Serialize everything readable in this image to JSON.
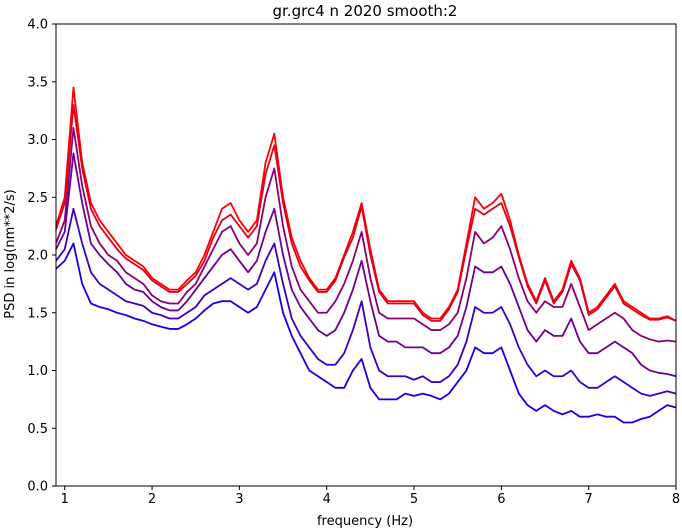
{
  "chart_data": {
    "type": "line",
    "title": "gr.grc4 n 2020 smooth:2",
    "xlabel": "frequency (Hz)",
    "ylabel": "PSD in log(nm**2/s)",
    "xlim": [
      0.9,
      8.0
    ],
    "ylim": [
      0.0,
      4.0
    ],
    "xticks": [
      1,
      2,
      3,
      4,
      5,
      6,
      7,
      8
    ],
    "yticks": [
      0.0,
      0.5,
      1.0,
      1.5,
      2.0,
      2.5,
      3.0,
      3.5,
      4.0
    ],
    "xtick_labels": [
      "1",
      "2",
      "3",
      "4",
      "5",
      "6",
      "7",
      "8"
    ],
    "ytick_labels": [
      "0.0",
      "0.5",
      "1.0",
      "1.5",
      "2.0",
      "2.5",
      "3.0",
      "3.5",
      "4.0"
    ],
    "grid": false,
    "x": [
      0.9,
      1.0,
      1.1,
      1.2,
      1.3,
      1.4,
      1.5,
      1.6,
      1.7,
      1.8,
      1.9,
      2.0,
      2.1,
      2.2,
      2.3,
      2.4,
      2.5,
      2.6,
      2.7,
      2.8,
      2.9,
      3.0,
      3.1,
      3.2,
      3.3,
      3.4,
      3.5,
      3.6,
      3.7,
      3.8,
      3.9,
      4.0,
      4.1,
      4.2,
      4.3,
      4.4,
      4.5,
      4.6,
      4.7,
      4.8,
      4.9,
      5.0,
      5.1,
      5.2,
      5.3,
      5.4,
      5.5,
      5.6,
      5.7,
      5.8,
      5.9,
      6.0,
      6.1,
      6.2,
      6.3,
      6.4,
      6.5,
      6.6,
      6.7,
      6.8,
      6.9,
      7.0,
      7.1,
      7.2,
      7.3,
      7.4,
      7.5,
      7.6,
      7.7,
      7.8,
      7.9,
      8.0
    ],
    "series": [
      {
        "color": "#ff0000",
        "values": [
          2.25,
          2.5,
          3.45,
          2.8,
          2.45,
          2.3,
          2.2,
          2.1,
          2.0,
          1.95,
          1.9,
          1.8,
          1.75,
          1.7,
          1.7,
          1.78,
          1.85,
          2.0,
          2.2,
          2.4,
          2.45,
          2.3,
          2.2,
          2.3,
          2.8,
          3.05,
          2.5,
          2.15,
          1.95,
          1.8,
          1.7,
          1.7,
          1.8,
          2.0,
          2.2,
          2.45,
          2.05,
          1.7,
          1.6,
          1.6,
          1.6,
          1.6,
          1.5,
          1.45,
          1.45,
          1.55,
          1.7,
          2.1,
          2.5,
          2.4,
          2.45,
          2.53,
          2.3,
          2.0,
          1.75,
          1.6,
          1.8,
          1.6,
          1.7,
          1.95,
          1.8,
          1.5,
          1.55,
          1.65,
          1.75,
          1.6,
          1.55,
          1.5,
          1.45,
          1.45,
          1.47,
          1.43
        ]
      },
      {
        "color": "#e2001c",
        "values": [
          2.22,
          2.45,
          3.3,
          2.75,
          2.4,
          2.25,
          2.15,
          2.05,
          1.97,
          1.92,
          1.87,
          1.78,
          1.73,
          1.68,
          1.68,
          1.75,
          1.82,
          1.95,
          2.15,
          2.3,
          2.35,
          2.25,
          2.15,
          2.25,
          2.7,
          2.95,
          2.45,
          2.1,
          1.9,
          1.78,
          1.68,
          1.68,
          1.78,
          1.98,
          2.15,
          2.42,
          2.0,
          1.68,
          1.58,
          1.58,
          1.58,
          1.58,
          1.48,
          1.43,
          1.43,
          1.53,
          1.68,
          2.05,
          2.4,
          2.35,
          2.4,
          2.45,
          2.25,
          1.98,
          1.73,
          1.58,
          1.78,
          1.58,
          1.68,
          1.92,
          1.78,
          1.48,
          1.53,
          1.63,
          1.73,
          1.58,
          1.53,
          1.48,
          1.44,
          1.44,
          1.46,
          1.43
        ]
      },
      {
        "color": "#8c0073",
        "values": [
          2.1,
          2.3,
          3.1,
          2.6,
          2.25,
          2.1,
          2.0,
          1.95,
          1.85,
          1.8,
          1.75,
          1.65,
          1.6,
          1.58,
          1.58,
          1.68,
          1.75,
          1.9,
          2.05,
          2.2,
          2.25,
          2.1,
          2.0,
          2.1,
          2.5,
          2.75,
          2.25,
          1.9,
          1.7,
          1.6,
          1.5,
          1.5,
          1.6,
          1.75,
          1.95,
          2.2,
          1.8,
          1.5,
          1.45,
          1.45,
          1.45,
          1.45,
          1.4,
          1.35,
          1.35,
          1.4,
          1.5,
          1.8,
          2.2,
          2.1,
          2.15,
          2.25,
          2.05,
          1.8,
          1.6,
          1.5,
          1.6,
          1.55,
          1.55,
          1.75,
          1.55,
          1.35,
          1.4,
          1.45,
          1.5,
          1.45,
          1.35,
          1.3,
          1.27,
          1.25,
          1.26,
          1.25
        ]
      },
      {
        "color": "#6a0095",
        "values": [
          2.05,
          2.2,
          2.88,
          2.45,
          2.1,
          2.0,
          1.92,
          1.85,
          1.75,
          1.7,
          1.68,
          1.6,
          1.55,
          1.52,
          1.52,
          1.6,
          1.7,
          1.8,
          1.9,
          2.0,
          2.05,
          1.95,
          1.85,
          1.95,
          2.2,
          2.4,
          2.0,
          1.7,
          1.55,
          1.45,
          1.35,
          1.3,
          1.35,
          1.5,
          1.7,
          1.95,
          1.6,
          1.3,
          1.25,
          1.25,
          1.2,
          1.2,
          1.2,
          1.15,
          1.15,
          1.2,
          1.3,
          1.55,
          1.9,
          1.85,
          1.85,
          1.9,
          1.75,
          1.55,
          1.35,
          1.25,
          1.35,
          1.3,
          1.3,
          1.45,
          1.25,
          1.15,
          1.15,
          1.2,
          1.25,
          1.2,
          1.15,
          1.05,
          1.0,
          0.98,
          0.97,
          0.95
        ]
      },
      {
        "color": "#3a00c5",
        "values": [
          1.95,
          2.05,
          2.4,
          2.1,
          1.85,
          1.75,
          1.7,
          1.65,
          1.6,
          1.58,
          1.56,
          1.5,
          1.48,
          1.45,
          1.45,
          1.5,
          1.55,
          1.65,
          1.7,
          1.75,
          1.8,
          1.75,
          1.7,
          1.75,
          1.95,
          2.1,
          1.75,
          1.45,
          1.3,
          1.2,
          1.1,
          1.05,
          1.05,
          1.15,
          1.35,
          1.6,
          1.2,
          1.0,
          0.95,
          0.95,
          0.95,
          0.92,
          0.95,
          0.9,
          0.9,
          0.95,
          1.05,
          1.25,
          1.55,
          1.5,
          1.5,
          1.55,
          1.4,
          1.2,
          1.05,
          0.95,
          1.0,
          0.95,
          0.95,
          1.0,
          0.9,
          0.85,
          0.85,
          0.9,
          0.95,
          0.9,
          0.85,
          0.8,
          0.78,
          0.8,
          0.82,
          0.8
        ]
      },
      {
        "color": "#1800e8",
        "values": [
          1.88,
          1.95,
          2.1,
          1.75,
          1.58,
          1.55,
          1.53,
          1.5,
          1.48,
          1.45,
          1.43,
          1.4,
          1.38,
          1.36,
          1.36,
          1.4,
          1.45,
          1.52,
          1.58,
          1.6,
          1.6,
          1.55,
          1.5,
          1.55,
          1.7,
          1.85,
          1.5,
          1.3,
          1.15,
          1.0,
          0.95,
          0.9,
          0.85,
          0.85,
          1.0,
          1.1,
          0.85,
          0.75,
          0.75,
          0.75,
          0.8,
          0.78,
          0.8,
          0.78,
          0.75,
          0.8,
          0.9,
          1.0,
          1.2,
          1.15,
          1.15,
          1.2,
          1.0,
          0.8,
          0.7,
          0.65,
          0.7,
          0.65,
          0.62,
          0.65,
          0.6,
          0.6,
          0.62,
          0.6,
          0.6,
          0.55,
          0.55,
          0.58,
          0.6,
          0.65,
          0.7,
          0.68
        ]
      }
    ]
  }
}
